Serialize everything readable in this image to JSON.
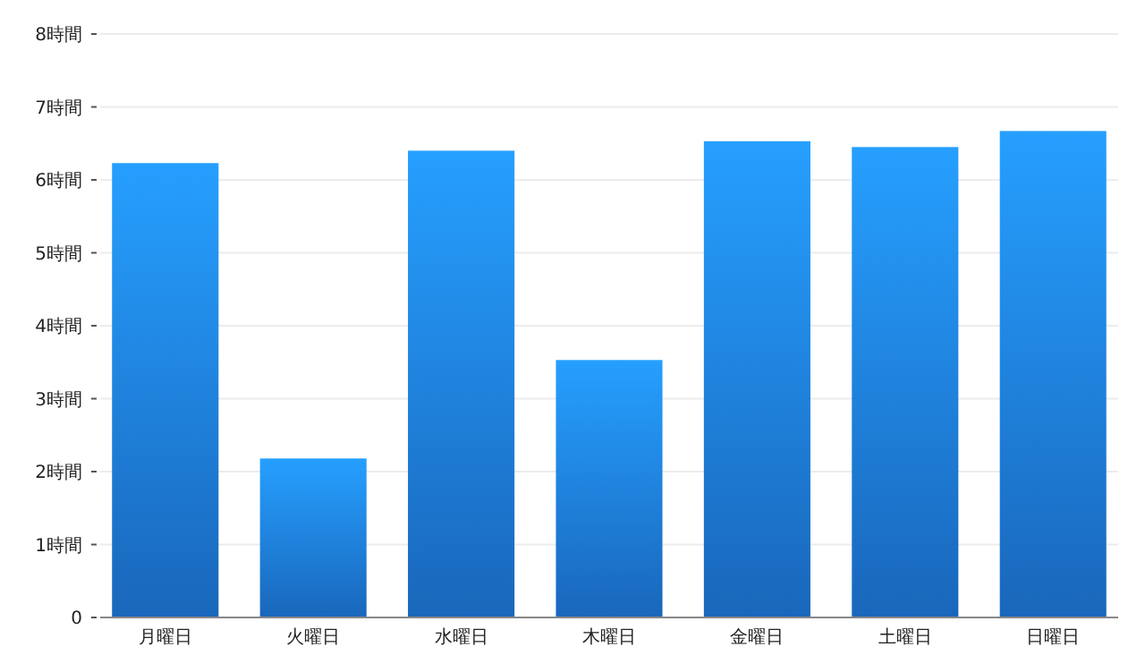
{
  "chart_data": {
    "type": "bar",
    "categories": [
      "月曜日",
      "火曜日",
      "水曜日",
      "木曜日",
      "金曜日",
      "土曜日",
      "日曜日"
    ],
    "values": [
      6.23,
      2.18,
      6.4,
      3.53,
      6.53,
      6.45,
      6.67
    ],
    "color": "#1f80e8",
    "ylim": [
      0,
      8
    ],
    "yticks": [
      0,
      {
        "value": 1,
        "label": "1時間"
      },
      {
        "value": 2,
        "label": "2時間"
      },
      {
        "value": 3,
        "label": "3時間"
      },
      {
        "value": 4,
        "label": "4時間"
      },
      {
        "value": 5,
        "label": "5時間"
      },
      {
        "value": 6,
        "label": "6時間"
      },
      {
        "value": 7,
        "label": "7時間"
      },
      {
        "value": 8,
        "label": "8時間"
      }
    ],
    "grid": "y"
  }
}
